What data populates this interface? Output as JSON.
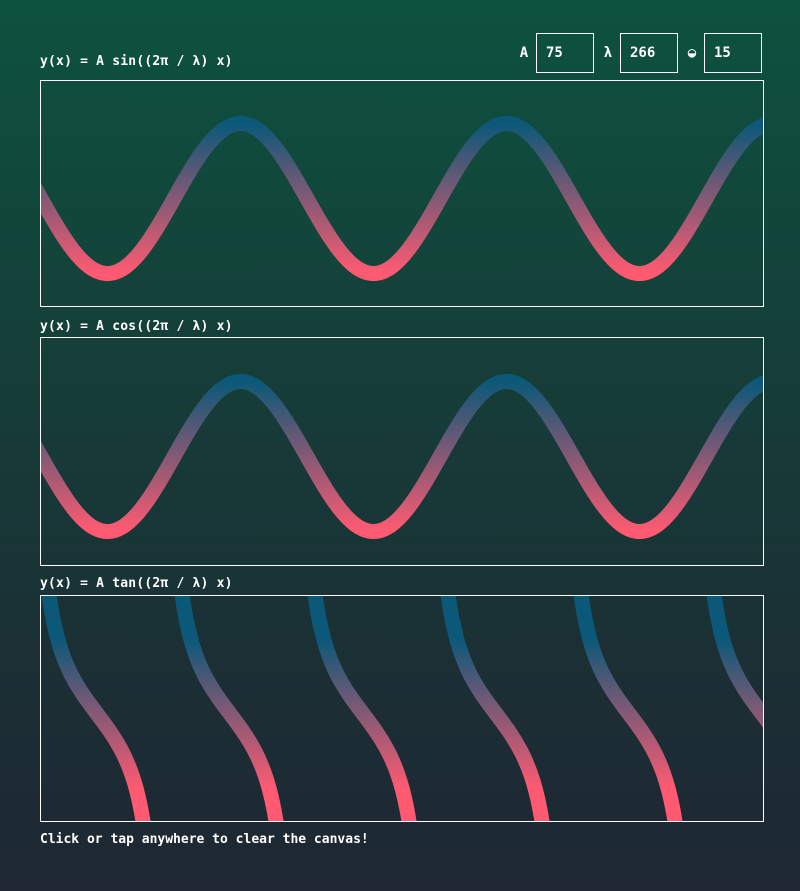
{
  "controls": {
    "amplitude": {
      "label": "A",
      "value": "75"
    },
    "wavelength": {
      "label": "λ",
      "value": "266"
    },
    "thickness": {
      "label": "◒",
      "value": "15"
    }
  },
  "plots": [
    {
      "formula": "y(x) = A sin((2π / λ) x)",
      "fn": "sin"
    },
    {
      "formula": "y(x) = A cos((2π / λ) x)",
      "fn": "cos"
    },
    {
      "formula": "y(x) = A tan((2π / λ) x)",
      "fn": "tan"
    }
  ],
  "colors": {
    "top": "#0b5878",
    "bottom": "#ff5a72"
  },
  "footer": "Click or tap anywhere to clear the canvas!"
}
